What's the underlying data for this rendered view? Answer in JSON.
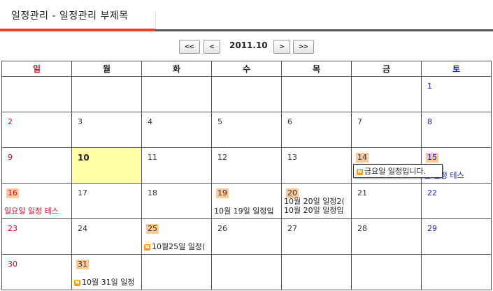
{
  "header": {
    "title": "일정관리 - 일정관리 부제목"
  },
  "nav": {
    "first": "<<",
    "prev": "<",
    "month": "2011.10",
    "next": ">",
    "last": ">>"
  },
  "weekdays": [
    "일",
    "월",
    "화",
    "수",
    "목",
    "금",
    "토"
  ],
  "weeks": [
    [
      {
        "day": "",
        "events": []
      },
      {
        "day": "",
        "events": []
      },
      {
        "day": "",
        "events": []
      },
      {
        "day": "",
        "events": []
      },
      {
        "day": "",
        "events": []
      },
      {
        "day": "",
        "events": []
      },
      {
        "day": "1",
        "events": []
      }
    ],
    [
      {
        "day": "2",
        "events": []
      },
      {
        "day": "3",
        "events": []
      },
      {
        "day": "4",
        "events": []
      },
      {
        "day": "5",
        "events": []
      },
      {
        "day": "6",
        "events": []
      },
      {
        "day": "7",
        "events": []
      },
      {
        "day": "8",
        "events": []
      }
    ],
    [
      {
        "day": "9",
        "events": []
      },
      {
        "day": "10",
        "today": true,
        "events": []
      },
      {
        "day": "11",
        "events": []
      },
      {
        "day": "12",
        "events": []
      },
      {
        "day": "13",
        "events": []
      },
      {
        "day": "14",
        "has_events": true,
        "events": []
      },
      {
        "day": "15",
        "has_events": true,
        "events": [
          {
            "text": "일 일정 테스",
            "color": "blue"
          }
        ]
      }
    ],
    [
      {
        "day": "16",
        "has_events": true,
        "events": [
          {
            "text": "일요일 일정 테스",
            "color": "red"
          }
        ]
      },
      {
        "day": "17",
        "events": []
      },
      {
        "day": "18",
        "events": []
      },
      {
        "day": "19",
        "has_events": true,
        "events": [
          {
            "text": "10월 19일 일정입"
          }
        ]
      },
      {
        "day": "20",
        "has_events": true,
        "events": [
          {
            "text": "10월 20일 일정2("
          },
          {
            "text": "10월 20일 일정입"
          }
        ]
      },
      {
        "day": "21",
        "events": []
      },
      {
        "day": "22",
        "events": []
      }
    ],
    [
      {
        "day": "23",
        "events": []
      },
      {
        "day": "24",
        "events": []
      },
      {
        "day": "25",
        "has_events": true,
        "events": [
          {
            "text": "10월25일 일정(",
            "icon": "N"
          }
        ]
      },
      {
        "day": "26",
        "events": []
      },
      {
        "day": "27",
        "events": []
      },
      {
        "day": "28",
        "events": []
      },
      {
        "day": "29",
        "events": []
      }
    ],
    [
      {
        "day": "30",
        "events": []
      },
      {
        "day": "31",
        "has_events": true,
        "events": [
          {
            "text": "10월 31일 일정",
            "icon": "N"
          }
        ]
      },
      {
        "day": "",
        "events": []
      },
      {
        "day": "",
        "events": []
      },
      {
        "day": "",
        "events": []
      },
      {
        "day": "",
        "events": []
      },
      {
        "day": "",
        "events": []
      }
    ]
  ],
  "tooltip": {
    "icon": "N",
    "text": "금요일 일정입니다."
  },
  "colors": {
    "accent": "#e0452c",
    "sunday": "#c8102e",
    "saturday": "#1a25b0",
    "today": "#ffffa5",
    "event_day": "#fbc99a",
    "new_icon": "#f39a1e"
  }
}
